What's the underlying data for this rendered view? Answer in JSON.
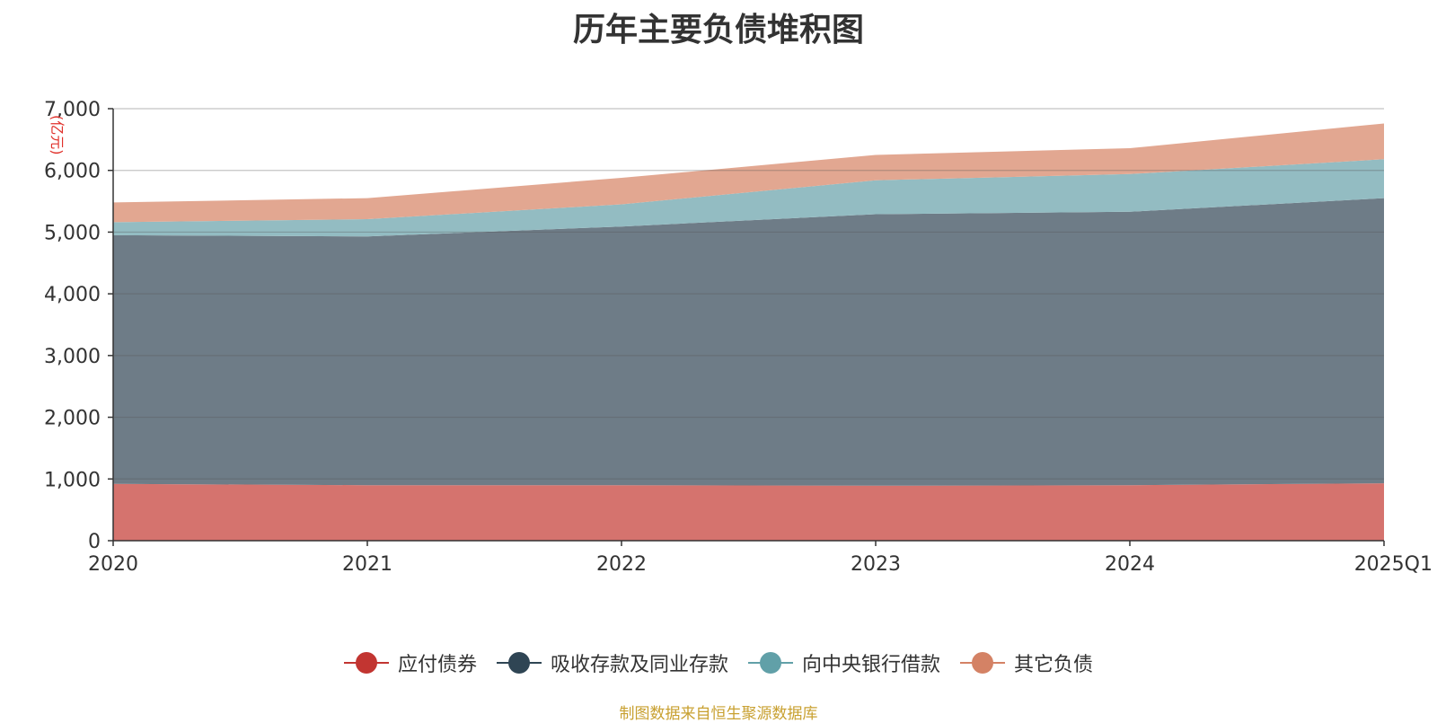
{
  "chart_data": {
    "type": "area",
    "stacked": true,
    "title": "历年主要负债堆积图",
    "unit": "(亿元)",
    "x": [
      "2020",
      "2021",
      "2022",
      "2023",
      "2024",
      "2025Q1"
    ],
    "ylim": [
      0,
      7000
    ],
    "yticks": [
      0,
      1000,
      2000,
      3000,
      4000,
      5000,
      6000,
      7000
    ],
    "ytick_labels": [
      "0",
      "1,000",
      "2,000",
      "3,000",
      "4,000",
      "5,000",
      "6,000",
      "7,000"
    ],
    "grid": true,
    "legend_position": "bottom",
    "series": [
      {
        "name": "应付债券",
        "values": [
          920,
          900,
          900,
          890,
          900,
          930
        ],
        "color": "#c23531",
        "fill": "#d5736e"
      },
      {
        "name": "吸收存款及同业存款",
        "values": [
          4030,
          4030,
          4190,
          4400,
          4430,
          4620
        ],
        "color": "#2f4554",
        "fill": "#6e7c87"
      },
      {
        "name": "向中央银行借款",
        "values": [
          210,
          280,
          360,
          550,
          610,
          630
        ],
        "color": "#61a0a8",
        "fill": "#93bcc2"
      },
      {
        "name": "其它负债",
        "values": [
          320,
          340,
          430,
          410,
          420,
          580
        ],
        "color": "#d48265",
        "fill": "#e2a791"
      }
    ]
  },
  "source": "制图数据来自恒生聚源数据库"
}
